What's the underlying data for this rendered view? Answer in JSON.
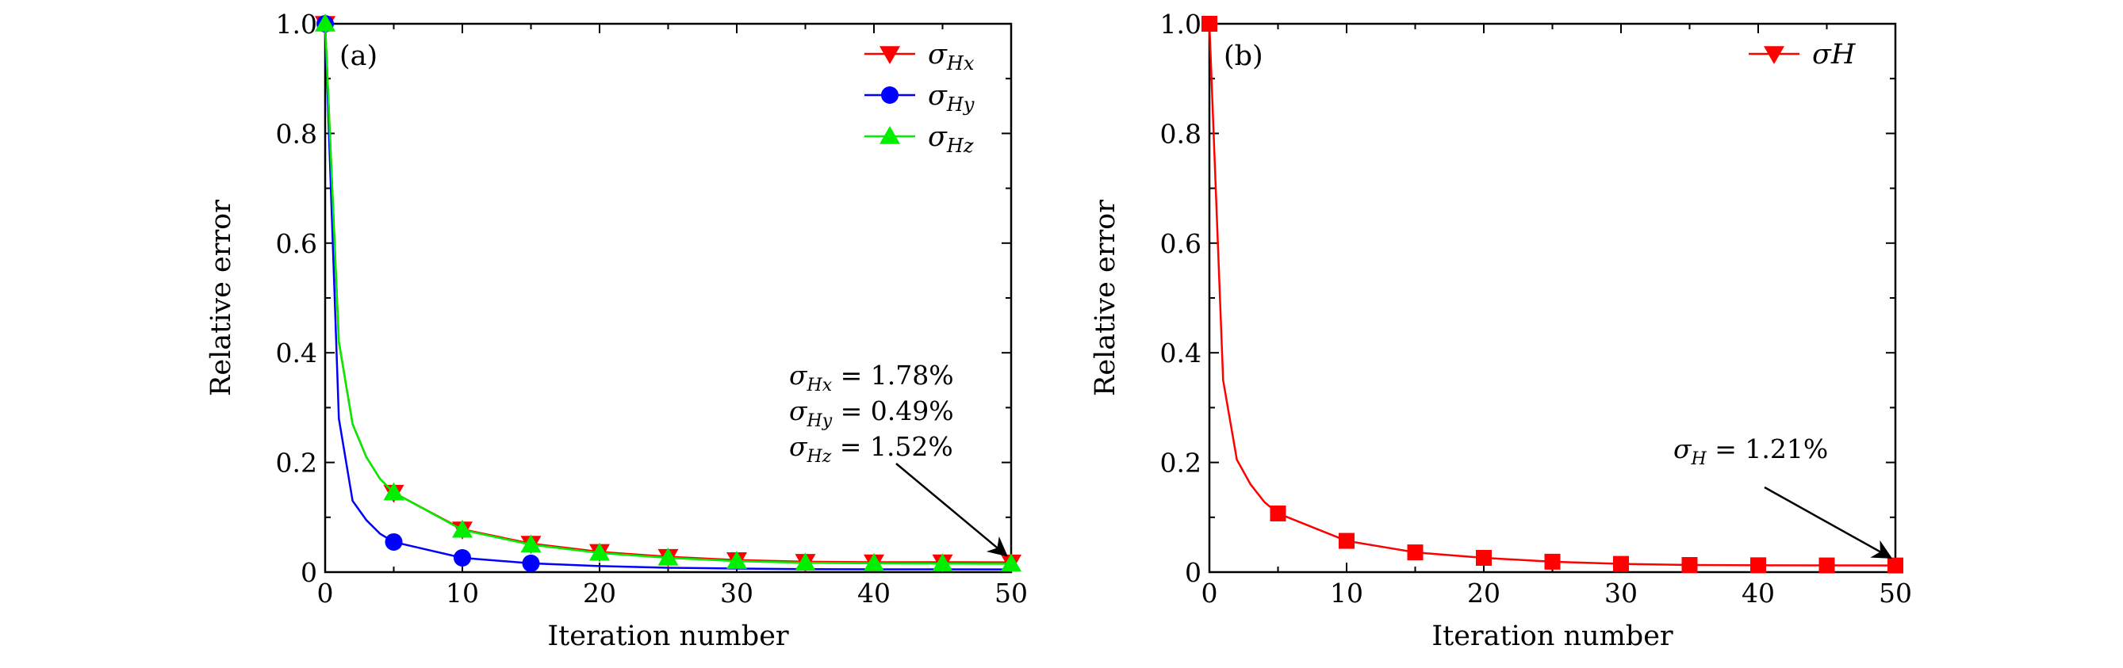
{
  "chart_data": [
    {
      "type": "line",
      "panel_label": "(a)",
      "xlabel": "Iteration number",
      "ylabel": "Relative error",
      "xlim": [
        0,
        50
      ],
      "ylim": [
        0,
        1.0
      ],
      "x_ticks": [
        "0",
        "10",
        "20",
        "30",
        "40",
        "50"
      ],
      "y_ticks": [
        "0",
        "0.2",
        "0.4",
        "0.6",
        "0.8",
        "1.0"
      ],
      "legend_position": "top-right",
      "series": [
        {
          "name": "σ_Hx",
          "label_main": "σ",
          "label_sub": "Hx",
          "color": "#ff0000",
          "marker": "triangle-down",
          "x": [
            0,
            1,
            2,
            3,
            4,
            5,
            10,
            15,
            20,
            25,
            30,
            35,
            40,
            45,
            50
          ],
          "y": [
            1.0,
            0.42,
            0.27,
            0.21,
            0.17,
            0.145,
            0.078,
            0.052,
            0.037,
            0.028,
            0.022,
            0.019,
            0.018,
            0.018,
            0.0178
          ],
          "marker_x": [
            0,
            5,
            10,
            15,
            20,
            25,
            30,
            35,
            40,
            45,
            50
          ]
        },
        {
          "name": "σ_Hy",
          "label_main": "σ",
          "label_sub": "Hy",
          "color": "#0000ff",
          "marker": "circle",
          "x": [
            0,
            1,
            2,
            3,
            4,
            5,
            10,
            15,
            20,
            25,
            30,
            35,
            40,
            45,
            50
          ],
          "y": [
            1.0,
            0.28,
            0.13,
            0.095,
            0.07,
            0.055,
            0.026,
            0.016,
            0.011,
            0.008,
            0.0065,
            0.0055,
            0.005,
            0.005,
            0.0049
          ],
          "marker_x": [
            0,
            5,
            10,
            15
          ]
        },
        {
          "name": "σ_Hz",
          "label_main": "σ",
          "label_sub": "Hz",
          "color": "#00ee00",
          "marker": "triangle-up",
          "x": [
            0,
            1,
            2,
            3,
            4,
            5,
            10,
            15,
            20,
            25,
            30,
            35,
            40,
            45,
            50
          ],
          "y": [
            1.0,
            0.42,
            0.27,
            0.21,
            0.17,
            0.145,
            0.077,
            0.05,
            0.035,
            0.026,
            0.02,
            0.017,
            0.016,
            0.0155,
            0.0152
          ],
          "marker_x": [
            0,
            5,
            10,
            15,
            20,
            25,
            30,
            35,
            40,
            45,
            50
          ]
        }
      ],
      "annotation": {
        "lines": [
          {
            "main": "σ",
            "sub": "Hx",
            "value": " = 1.78%"
          },
          {
            "main": "σ",
            "sub": "Hy",
            "value": " = 0.49%"
          },
          {
            "main": "σ",
            "sub": "Hz",
            "value": " = 1.52%"
          }
        ],
        "arrow_to": [
          50,
          0.016
        ]
      }
    },
    {
      "type": "line",
      "panel_label": "(b)",
      "xlabel": "Iteration number",
      "ylabel": "Relative error",
      "xlim": [
        0,
        50
      ],
      "ylim": [
        0,
        1.0
      ],
      "x_ticks": [
        "0",
        "10",
        "20",
        "30",
        "40",
        "50"
      ],
      "y_ticks": [
        "0",
        "0.2",
        "0.4",
        "0.6",
        "0.8",
        "1.0"
      ],
      "legend_position": "top-right",
      "series": [
        {
          "name": "σH",
          "label_main": "σH",
          "label_sub": "",
          "color": "#ff0000",
          "marker": "triangle-down",
          "plot_marker": "square",
          "x": [
            0,
            1,
            2,
            3,
            4,
            5,
            10,
            15,
            20,
            25,
            30,
            35,
            40,
            45,
            50
          ],
          "y": [
            1.0,
            0.35,
            0.205,
            0.16,
            0.128,
            0.107,
            0.057,
            0.036,
            0.026,
            0.019,
            0.015,
            0.013,
            0.0125,
            0.0122,
            0.0121
          ],
          "marker_x": [
            0,
            5,
            10,
            15,
            20,
            25,
            30,
            35,
            40,
            45,
            50
          ]
        }
      ],
      "annotation": {
        "lines": [
          {
            "main": "σ",
            "sub": "H",
            "value": " = 1.21%"
          }
        ],
        "arrow_to": [
          50,
          0.012
        ]
      }
    }
  ]
}
